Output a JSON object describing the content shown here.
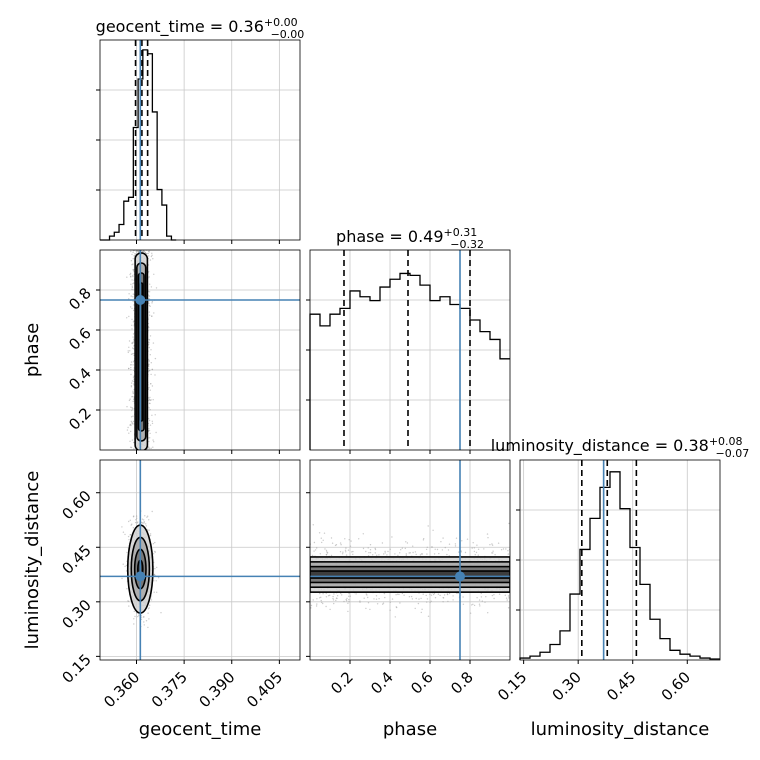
{
  "chart_data": {
    "type": "corner",
    "parameters": [
      "geocent_time",
      "phase",
      "luminosity_distance"
    ],
    "truths": {
      "geocent_time": 0.3612,
      "phase": 0.75,
      "luminosity_distance": 0.37
    },
    "titles": [
      {
        "parameter": "geocent_time",
        "prefix": "geocent_time = 0.36",
        "plus": "+0.00",
        "minus": "−0.00"
      },
      {
        "parameter": "phase",
        "prefix": "phase = 0.49",
        "plus": "+0.31",
        "minus": "−0.32"
      },
      {
        "parameter": "luminosity_distance",
        "prefix": "luminosity_distance = 0.38",
        "plus": "+0.08",
        "minus": "−0.07"
      }
    ],
    "axis_labels": {
      "geocent_time": "geocent_time",
      "phase": "phase",
      "luminosity_distance": "luminosity_distance"
    },
    "ranges": {
      "geocent_time": [
        0.3485,
        0.4115
      ],
      "phase": [
        0.0,
        1.0
      ],
      "luminosity_distance": [
        0.14,
        0.69
      ]
    },
    "ticks": {
      "geocent_time": [
        "0.360",
        "0.375",
        "0.390",
        "0.405"
      ],
      "phase": [
        "0.2",
        "0.4",
        "0.6",
        "0.8"
      ],
      "luminosity_distance": [
        "0.15",
        "0.30",
        "0.45",
        "0.60"
      ]
    },
    "quantiles": {
      "geocent_time": [
        0.3597,
        0.3617,
        0.3635
      ],
      "phase": [
        0.17,
        0.49,
        0.8
      ],
      "luminosity_distance": [
        0.31,
        0.38,
        0.46
      ]
    },
    "histograms": {
      "geocent_time": {
        "edges": [
          0.3485,
          0.35,
          0.3515,
          0.353,
          0.3545,
          0.356,
          0.3575,
          0.359,
          0.3605,
          0.362,
          0.3635,
          0.365,
          0.3665,
          0.368,
          0.3695,
          0.371,
          0.3725
        ],
        "counts": [
          0,
          0,
          0.02,
          0.04,
          0.08,
          0.2,
          0.22,
          0.58,
          0.83,
          0.98,
          0.96,
          0.66,
          0.26,
          0.18,
          0.02,
          0.0
        ]
      },
      "phase": {
        "edges": [
          0.0,
          0.05,
          0.1,
          0.15,
          0.2,
          0.25,
          0.3,
          0.35,
          0.4,
          0.45,
          0.5,
          0.55,
          0.6,
          0.65,
          0.7,
          0.75,
          0.8,
          0.85,
          0.9,
          0.95,
          1.0
        ],
        "counts": [
          0.7,
          0.64,
          0.7,
          0.73,
          0.82,
          0.79,
          0.77,
          0.84,
          0.88,
          0.91,
          0.9,
          0.85,
          0.77,
          0.79,
          0.75,
          0.73,
          0.67,
          0.61,
          0.57,
          0.47
        ]
      },
      "luminosity_distance": {
        "edges": [
          0.14,
          0.1675,
          0.195,
          0.2225,
          0.25,
          0.2775,
          0.305,
          0.3325,
          0.36,
          0.3875,
          0.415,
          0.4425,
          0.47,
          0.4975,
          0.525,
          0.5525,
          0.58,
          0.6075,
          0.635,
          0.6625,
          0.69
        ],
        "counts": [
          0.01,
          0.02,
          0.04,
          0.08,
          0.15,
          0.34,
          0.57,
          0.73,
          0.89,
          0.97,
          0.78,
          0.58,
          0.39,
          0.21,
          0.11,
          0.05,
          0.03,
          0.02,
          0.01,
          0.005
        ]
      }
    },
    "pairs": [
      {
        "x": "geocent_time",
        "y": "phase",
        "center": [
          0.3615,
          0.5
        ],
        "spread": [
          0.0016,
          0.26
        ]
      },
      {
        "x": "geocent_time",
        "y": "luminosity_distance",
        "center": [
          0.3612,
          0.39
        ],
        "spread": [
          0.0018,
          0.055
        ]
      },
      {
        "x": "phase",
        "y": "luminosity_distance",
        "center": [
          0.5,
          0.375
        ],
        "spread": [
          0.3,
          0.04
        ]
      }
    ],
    "colors": {
      "truth": "#4682b4",
      "hist": "#000000",
      "quantile": "#000000",
      "points": "#9e9e9e",
      "grid": "#c8c8c8"
    }
  }
}
